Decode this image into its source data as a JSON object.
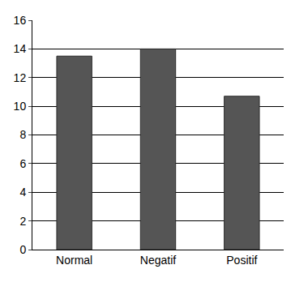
{
  "chart_data": {
    "type": "bar",
    "categories": [
      "Normal",
      "Negatif",
      "Positif"
    ],
    "values": [
      13.5,
      14.0,
      10.7
    ],
    "color": "#555555",
    "ylim": [
      0,
      16
    ],
    "yticks": [
      0,
      2,
      4,
      6,
      8,
      10,
      12,
      14,
      16
    ],
    "grid": true
  }
}
